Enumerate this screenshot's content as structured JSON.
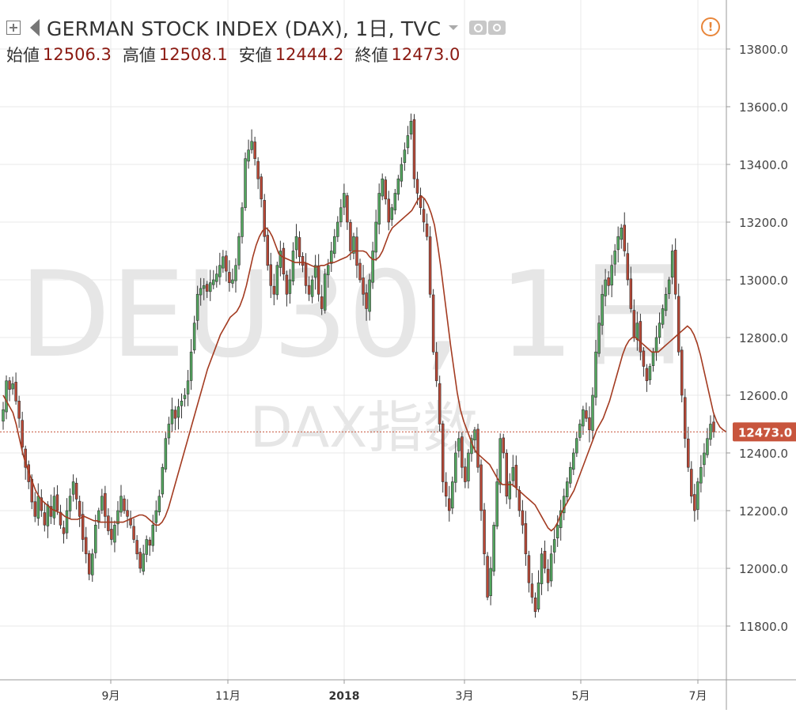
{
  "header": {
    "title": "GERMAN STOCK INDEX (DAX), 1日, TVC",
    "ohlc": [
      {
        "label": "始値",
        "value": "12506.3"
      },
      {
        "label": "高値",
        "value": "12508.1"
      },
      {
        "label": "安値",
        "value": "12444.2"
      },
      {
        "label": "終値",
        "value": "12473.0"
      }
    ],
    "icons": [
      "add-box-icon",
      "flag-icon",
      "chevron-down-icon",
      "eye-icon",
      "gear-icon",
      "warning-icon"
    ]
  },
  "watermark": {
    "symbol": "DEU30, 1日",
    "name": "DAX指数"
  },
  "colors": {
    "up": "#53a75f",
    "down": "#b94836",
    "ma": "#a33b21",
    "last_price_label_bg": "#c8553d",
    "grid": "#e9e9e9"
  },
  "chart_data": {
    "type": "candlestick",
    "title": "GERMAN STOCK INDEX (DAX), 1日, TVC",
    "y_ticks": [
      "11800.0",
      "12000.0",
      "12200.0",
      "12400.0",
      "12600.0",
      "12800.0",
      "13000.0",
      "13200.0",
      "13400.0",
      "13600.0",
      "13800.0"
    ],
    "x_ticks": [
      "9月",
      "11月",
      "2018",
      "3月",
      "5月",
      "7月"
    ],
    "ylim": [
      11650,
      13880
    ],
    "last_price": 12473.0,
    "last_price_label": "12473.0",
    "grid": true,
    "series": [
      {
        "type": "candles",
        "closes": [
          12550,
          12650,
          12620,
          12640,
          12580,
          12520,
          12420,
          12350,
          12300,
          12230,
          12180,
          12250,
          12200,
          12150,
          12220,
          12180,
          12250,
          12200,
          12150,
          12120,
          12200,
          12250,
          12300,
          12240,
          12180,
          12100,
          12050,
          11980,
          12050,
          12150,
          12200,
          12250,
          12180,
          12130,
          12100,
          12150,
          12200,
          12250,
          12200,
          12180,
          12150,
          12100,
          12050,
          12000,
          12050,
          12100,
          12080,
          12150,
          12200,
          12250,
          12350,
          12450,
          12500,
          12550,
          12520,
          12560,
          12580,
          12600,
          12650,
          12750,
          12850,
          12950,
          12970,
          12980,
          12960,
          12990,
          13000,
          13020,
          13050,
          13080,
          13030,
          12990,
          13000,
          13050,
          13150,
          13250,
          13420,
          13450,
          13480,
          13420,
          13350,
          13280,
          13150,
          13050,
          12980,
          12950,
          13050,
          13100,
          13020,
          12950,
          13000,
          13100,
          13150,
          13080,
          13050,
          12980,
          12950,
          13000,
          13050,
          12950,
          12900,
          13020,
          13050,
          13100,
          13150,
          13200,
          13250,
          13300,
          13200,
          13100,
          13150,
          13050,
          13000,
          12950,
          12900,
          13000,
          13100,
          13200,
          13300,
          13350,
          13280,
          13200,
          13250,
          13300,
          13350,
          13400,
          13450,
          13500,
          13550,
          13350,
          13300,
          13250,
          13200,
          13150,
          12950,
          12750,
          12650,
          12500,
          12300,
          12250,
          12200,
          12300,
          12400,
          12450,
          12350,
          12300,
          12400,
          12450,
          12480,
          12350,
          12200,
          12050,
          11900,
          12000,
          12150,
          12300,
          12450,
          12400,
          12250,
          12300,
          12350,
          12280,
          12200,
          12150,
          12050,
          11950,
          11900,
          11850,
          11950,
          12050,
          12000,
          11950,
          12050,
          12100,
          12150,
          12200,
          12250,
          12300,
          12350,
          12400,
          12450,
          12500,
          12550,
          12520,
          12480,
          12600,
          12750,
          12850,
          12950,
          13000,
          12980,
          13050,
          13100,
          13150,
          13180,
          13100,
          13000,
          12900,
          12800,
          12850,
          12750,
          12700,
          12650,
          12700,
          12750,
          12800,
          12850,
          12900,
          12950,
          13000,
          13100,
          12950,
          12750,
          12600,
          12450,
          12350,
          12250,
          12200,
          12300,
          12350,
          12400,
          12450,
          12500,
          12473
        ]
      },
      {
        "type": "line",
        "name": "",
        "values": [
          12600,
          12580,
          12560,
          12540,
          12500,
          12450,
          12400,
          12360,
          12330,
          12300,
          12270,
          12250,
          12235,
          12225,
          12215,
          12205,
          12200,
          12195,
          12190,
          12180,
          12175,
          12170,
          12170,
          12170,
          12175,
          12180,
          12175,
          12170,
          12165,
          12165,
          12160,
          12160,
          12160,
          12160,
          12160,
          12160,
          12160,
          12160,
          12165,
          12170,
          12175,
          12180,
          12185,
          12185,
          12180,
          12170,
          12160,
          12150,
          12150,
          12160,
          12180,
          12210,
          12250,
          12290,
          12330,
          12370,
          12410,
          12450,
          12490,
          12530,
          12570,
          12610,
          12650,
          12690,
          12720,
          12750,
          12780,
          12810,
          12830,
          12850,
          12870,
          12880,
          12890,
          12910,
          12940,
          12980,
          13030,
          13080,
          13120,
          13150,
          13170,
          13180,
          13170,
          13150,
          13120,
          13090,
          13080,
          13075,
          13070,
          13065,
          13060,
          13060,
          13060,
          13060,
          13055,
          13050,
          13045,
          13045,
          13050,
          13050,
          13055,
          13060,
          13060,
          13065,
          13070,
          13075,
          13080,
          13090,
          13100,
          13100,
          13100,
          13100,
          13095,
          13080,
          13070,
          13070,
          13080,
          13100,
          13130,
          13160,
          13180,
          13190,
          13200,
          13210,
          13220,
          13230,
          13240,
          13260,
          13280,
          13290,
          13280,
          13260,
          13230,
          13190,
          13120,
          13040,
          12950,
          12860,
          12770,
          12690,
          12610,
          12550,
          12510,
          12480,
          12450,
          12420,
          12400,
          12390,
          12380,
          12370,
          12360,
          12340,
          12320,
          12300,
          12290,
          12290,
          12290,
          12290,
          12280,
          12270,
          12260,
          12250,
          12240,
          12230,
          12220,
          12200,
          12180,
          12160,
          12140,
          12130,
          12140,
          12160,
          12190,
          12210,
          12230,
          12250,
          12270,
          12300,
          12330,
          12360,
          12390,
          12420,
          12450,
          12480,
          12500,
          12520,
          12550,
          12580,
          12620,
          12660,
          12700,
          12740,
          12770,
          12790,
          12800,
          12800,
          12790,
          12780,
          12770,
          12760,
          12750,
          12750,
          12750,
          12760,
          12770,
          12780,
          12790,
          12800,
          12810,
          12820,
          12830,
          12840,
          12830,
          12810,
          12780,
          12740,
          12690,
          12640,
          12590,
          12540,
          12510,
          12490,
          12480,
          12473
        ]
      }
    ]
  }
}
